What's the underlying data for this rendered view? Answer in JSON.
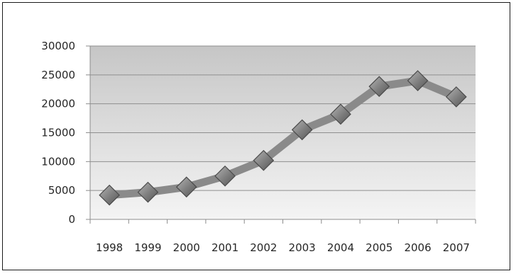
{
  "chart_data": {
    "type": "line",
    "title": "",
    "xlabel": "",
    "ylabel": "",
    "categories": [
      "1998",
      "1999",
      "2000",
      "2001",
      "2002",
      "2003",
      "2004",
      "2005",
      "2006",
      "2007"
    ],
    "series": [
      {
        "values": [
          4200,
          4700,
          5600,
          7500,
          10200,
          15500,
          18200,
          23000,
          24000,
          21200
        ]
      }
    ],
    "ylim": [
      0,
      30000
    ],
    "yticks": [
      "0",
      "5000",
      "10000",
      "15000",
      "20000",
      "25000",
      "30000"
    ],
    "grid": "horizontal",
    "legend": "none",
    "colors": {
      "line": "#8a8a8a",
      "marker_fill": "#7d7d7d",
      "marker_edge": "#4a4a4a",
      "gridline": "#8f8f8f",
      "plot_bg_top": "#c6c6c6",
      "plot_bg_bottom": "#f4f4f4"
    }
  }
}
